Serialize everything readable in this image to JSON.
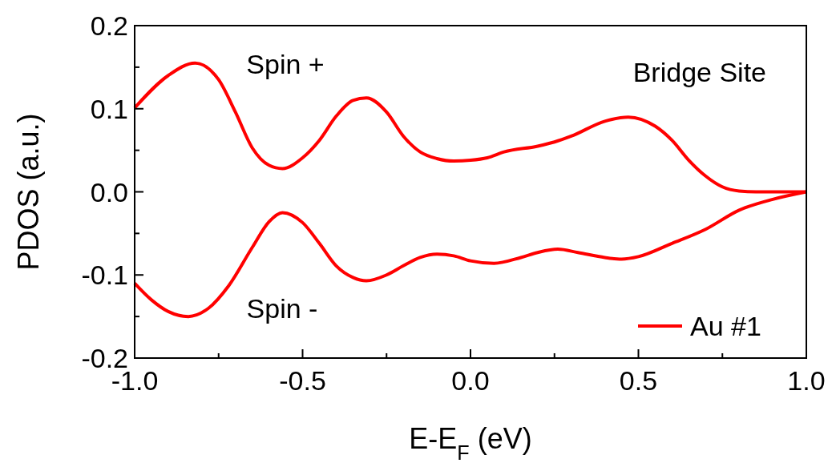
{
  "chart_data": {
    "type": "line",
    "xlabel": "E-E$_{F}$ (eV)",
    "ylabel": "PDOS (a.u.)",
    "xlim": [
      -1,
      1
    ],
    "ylim": [
      -0.2,
      0.2
    ],
    "xticks": [
      {
        "value": -1,
        "label": "-1.0"
      },
      {
        "value": -0.75,
        "label": null
      },
      {
        "value": -0.5,
        "label": "-0.5"
      },
      {
        "value": -0.25,
        "label": null
      },
      {
        "value": 0,
        "label": "0.0"
      },
      {
        "value": 0.25,
        "label": null
      },
      {
        "value": 0.5,
        "label": "0.5"
      },
      {
        "value": 0.75,
        "label": null
      },
      {
        "value": 1,
        "label": "1.0"
      }
    ],
    "yticks": [
      {
        "value": -0.2,
        "label": "-0.2"
      },
      {
        "value": -0.15,
        "label": null
      },
      {
        "value": -0.1,
        "label": "-0.1"
      },
      {
        "value": -0.05,
        "label": null
      },
      {
        "value": 0,
        "label": "0.0"
      },
      {
        "value": 0.05,
        "label": null
      },
      {
        "value": 0.1,
        "label": "0.1"
      },
      {
        "value": 0.15,
        "label": null
      },
      {
        "value": 0.2,
        "label": "0.2"
      }
    ],
    "legend": "bottom right",
    "grid": false,
    "marker": "none",
    "line_style": "solid",
    "annotations": [
      "Spin +",
      "Spin -",
      "Bridge Site"
    ],
    "series": [
      {
        "name": "Au #1",
        "color": "#ff0000",
        "x": [
          -1,
          -0.9,
          -0.82,
          -0.75,
          -0.7,
          -0.65,
          -0.6,
          -0.56,
          -0.5,
          -0.45,
          -0.4,
          -0.35,
          -0.31,
          -0.25,
          -0.2,
          -0.15,
          -0.1,
          -0.05,
          0,
          0.05,
          0.1,
          0.2,
          0.25,
          0.3,
          0.4,
          0.47,
          0.55,
          0.6,
          0.65,
          0.7,
          0.75,
          0.8,
          0.85,
          1
        ],
        "values": [
          0.101,
          0.14,
          0.155,
          0.135,
          0.096,
          0.053,
          0.032,
          0.028,
          0.041,
          0.062,
          0.091,
          0.11,
          0.113,
          0.096,
          0.067,
          0.048,
          0.04,
          0.037,
          0.038,
          0.041,
          0.048,
          0.055,
          0.06,
          0.067,
          0.085,
          0.09,
          0.079,
          0.062,
          0.038,
          0.019,
          0.006,
          0.001,
          0,
          0
        ]
      },
      {
        "color": "#ff0000",
        "x": [
          -1,
          -0.95,
          -0.9,
          -0.84,
          -0.78,
          -0.72,
          -0.65,
          -0.6,
          -0.56,
          -0.5,
          -0.45,
          -0.4,
          -0.35,
          -0.31,
          -0.25,
          -0.2,
          -0.15,
          -0.1,
          -0.05,
          0,
          0.07,
          0.15,
          0.2,
          0.26,
          0.32,
          0.4,
          0.45,
          0.5,
          0.6,
          0.7,
          0.8,
          0.9,
          1
        ],
        "values": [
          -0.11,
          -0.13,
          -0.144,
          -0.15,
          -0.14,
          -0.113,
          -0.067,
          -0.036,
          -0.025,
          -0.037,
          -0.062,
          -0.089,
          -0.103,
          -0.107,
          -0.1,
          -0.089,
          -0.079,
          -0.075,
          -0.077,
          -0.083,
          -0.086,
          -0.079,
          -0.073,
          -0.069,
          -0.073,
          -0.079,
          -0.081,
          -0.078,
          -0.062,
          -0.045,
          -0.022,
          -0.009,
          0
        ]
      }
    ]
  }
}
